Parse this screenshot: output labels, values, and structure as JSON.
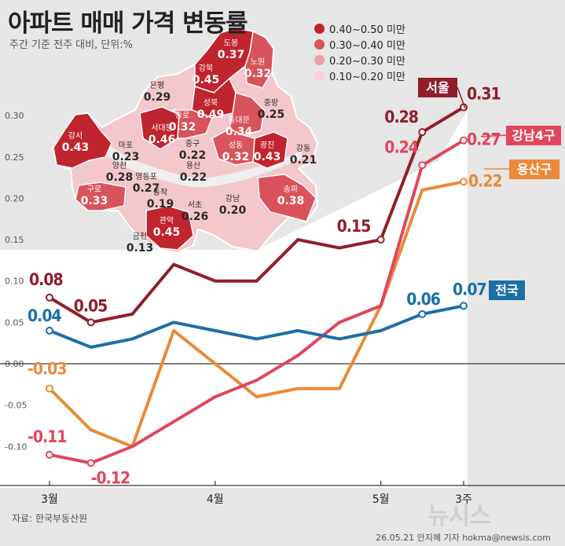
{
  "title": "아파트 매매 가격 변동률",
  "subtitle": "주간 기준 전주 대비, 단위:%",
  "source": "자료: 한국부동산원",
  "credit": "26.05.21 안지혜 기자 hokma@newsis.com",
  "logo_text": "뉴시스",
  "map_legend": [
    {
      "label": "0.40~0.50 미만",
      "color": "#c0242e"
    },
    {
      "label": "0.30~0.40 미만",
      "color": "#d9535c"
    },
    {
      "label": "0.20~0.30 미만",
      "color": "#eda0a6"
    },
    {
      "label": "0.10~0.20 미만",
      "color": "#f7d2d5"
    }
  ],
  "map_districts": [
    {
      "name": "도봉",
      "value": "0.37",
      "color": "#d9535c"
    },
    {
      "name": "노원",
      "value": "0.32",
      "color": "#d9535c"
    },
    {
      "name": "강북",
      "value": "0.45",
      "color": "#c0242e"
    },
    {
      "name": "은평",
      "value": "0.29",
      "color": "#eda0a6"
    },
    {
      "name": "성북",
      "value": "0.49",
      "color": "#c0242e"
    },
    {
      "name": "중랑",
      "value": "0.25",
      "color": "#eda0a6"
    },
    {
      "name": "종로",
      "value": "0.32",
      "color": "#d9535c"
    },
    {
      "name": "동대문",
      "value": "0.34",
      "color": "#d9535c"
    },
    {
      "name": "서대문",
      "value": "0.46",
      "color": "#c0242e"
    },
    {
      "name": "강서",
      "value": "0.43",
      "color": "#c0242e"
    },
    {
      "name": "마포",
      "value": "0.23",
      "color": "#eda0a6"
    },
    {
      "name": "중구",
      "value": "0.22",
      "color": "#eda0a6"
    },
    {
      "name": "성동",
      "value": "0.32",
      "color": "#d9535c"
    },
    {
      "name": "광진",
      "value": "0.43",
      "color": "#c0242e"
    },
    {
      "name": "강동",
      "value": "0.21",
      "color": "#eda0a6"
    },
    {
      "name": "양천",
      "value": "0.28",
      "color": "#eda0a6"
    },
    {
      "name": "용산",
      "value": "0.22",
      "color": "#eda0a6"
    },
    {
      "name": "영등포",
      "value": "0.27",
      "color": "#eda0a6"
    },
    {
      "name": "동작",
      "value": "0.19",
      "color": "#f7d2d5"
    },
    {
      "name": "구로",
      "value": "0.33",
      "color": "#d9535c"
    },
    {
      "name": "강남",
      "value": "0.20",
      "color": "#eda0a6"
    },
    {
      "name": "서초",
      "value": "0.26",
      "color": "#eda0a6"
    },
    {
      "name": "송파",
      "value": "0.38",
      "color": "#d9535c"
    },
    {
      "name": "관악",
      "value": "0.45",
      "color": "#c0242e"
    },
    {
      "name": "금천",
      "value": "0.13",
      "color": "#f7d2d5"
    }
  ],
  "chart_data": {
    "type": "line",
    "title": "아파트 매매 가격 변동률",
    "xlabel": "",
    "ylabel": "",
    "ylim": [
      -0.15,
      0.35
    ],
    "yticks": [
      0.3,
      0.25,
      0.2,
      0.15,
      0.1,
      0.05,
      0.0,
      -0.05,
      -0.1
    ],
    "ytick_labels": [
      "0.30",
      "0.25",
      "0.20",
      "0.15",
      "0.10",
      "0.05",
      "0.00",
      "-0.05",
      "-0.10"
    ],
    "x_count": 11,
    "xtick_labels": [
      {
        "index": 0,
        "label": "3월"
      },
      {
        "index": 4,
        "label": "4월"
      },
      {
        "index": 8,
        "label": "5월"
      },
      {
        "index": 10,
        "label": "3주"
      }
    ],
    "grid": false,
    "series": [
      {
        "name": "서울",
        "color": "#8f1f2a",
        "values": [
          0.08,
          0.05,
          0.06,
          0.12,
          0.1,
          0.1,
          0.15,
          0.14,
          0.15,
          0.28,
          0.31
        ],
        "labels": {
          "0": "0.08",
          "1": "0.05",
          "8": "0.15",
          "9": "0.28",
          "10": "0.31"
        }
      },
      {
        "name": "강남4구",
        "color": "#e0465c",
        "values": [
          -0.11,
          -0.12,
          -0.1,
          -0.07,
          -0.04,
          -0.02,
          0.01,
          0.05,
          0.07,
          0.24,
          0.27
        ],
        "labels": {
          "0": "-0.11",
          "1": "-0.12",
          "9": "0.24",
          "10": "0.27"
        }
      },
      {
        "name": "용산구",
        "color": "#ea8a3a",
        "values": [
          -0.03,
          -0.08,
          -0.1,
          0.04,
          0.0,
          -0.04,
          -0.03,
          -0.03,
          0.07,
          0.21,
          0.22
        ],
        "labels": {
          "0": "-0.03",
          "10": "0.22"
        }
      },
      {
        "name": "전국",
        "color": "#1b6fa8",
        "values": [
          0.04,
          0.02,
          0.03,
          0.05,
          0.04,
          0.03,
          0.04,
          0.03,
          0.04,
          0.06,
          0.07
        ],
        "labels": {
          "0": "0.04",
          "9": "0.06",
          "10": "0.07"
        }
      }
    ]
  }
}
